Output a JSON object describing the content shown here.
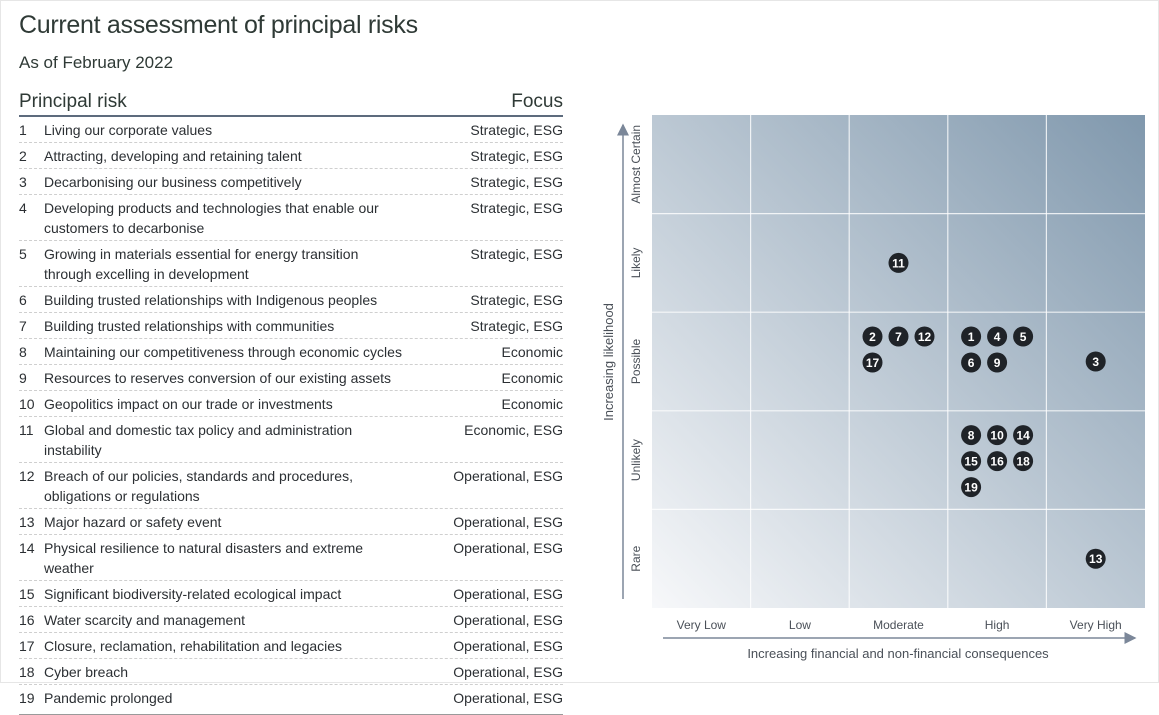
{
  "title": "Current assessment of principal risks",
  "subtitle": "As of February 2022",
  "table": {
    "headers": {
      "risk": "Principal risk",
      "focus": "Focus"
    },
    "rows": [
      {
        "n": "1",
        "risk": "Living our corporate values",
        "focus": "Strategic, ESG"
      },
      {
        "n": "2",
        "risk": "Attracting, developing and retaining talent",
        "focus": "Strategic, ESG"
      },
      {
        "n": "3",
        "risk": "Decarbonising our business competitively",
        "focus": "Strategic, ESG"
      },
      {
        "n": "4",
        "risk": "Developing products and technologies that enable our customers to decarbonise",
        "focus": "Strategic, ESG"
      },
      {
        "n": "5",
        "risk": "Growing in materials essential for energy transition through excelling in development",
        "focus": "Strategic, ESG"
      },
      {
        "n": "6",
        "risk": "Building trusted relationships with Indigenous peoples",
        "focus": "Strategic, ESG"
      },
      {
        "n": "7",
        "risk": "Building trusted relationships with communities",
        "focus": "Strategic, ESG"
      },
      {
        "n": "8",
        "risk": "Maintaining our competitiveness through economic cycles",
        "focus": "Economic"
      },
      {
        "n": "9",
        "risk": "Resources to reserves conversion of our existing assets",
        "focus": "Economic"
      },
      {
        "n": "10",
        "risk": "Geopolitics impact on our trade or investments",
        "focus": "Economic"
      },
      {
        "n": "11",
        "risk": "Global and domestic tax policy and administration instability",
        "focus": "Economic, ESG"
      },
      {
        "n": "12",
        "risk": "Breach of our policies, standards and procedures, obligations or regulations",
        "focus": "Operational, ESG"
      },
      {
        "n": "13",
        "risk": "Major hazard or safety event",
        "focus": "Operational, ESG"
      },
      {
        "n": "14",
        "risk": "Physical resilience to natural disasters and extreme weather",
        "focus": "Operational, ESG"
      },
      {
        "n": "15",
        "risk": "Significant biodiversity-related ecological impact",
        "focus": "Operational, ESG"
      },
      {
        "n": "16",
        "risk": "Water scarcity and management",
        "focus": "Operational, ESG"
      },
      {
        "n": "17",
        "risk": "Closure, reclamation, rehabilitation and legacies",
        "focus": "Operational, ESG"
      },
      {
        "n": "18",
        "risk": "Cyber breach",
        "focus": "Operational, ESG"
      },
      {
        "n": "19",
        "risk": "Pandemic prolonged",
        "focus": "Operational, ESG"
      }
    ]
  },
  "chart_data": {
    "type": "scatter",
    "xlabel": "Increasing financial and non-financial consequences",
    "ylabel": "Increasing likelihood",
    "x_categories": [
      "Very Low",
      "Low",
      "Moderate",
      "High",
      "Very High"
    ],
    "y_categories": [
      "Rare",
      "Unlikely",
      "Possible",
      "Likely",
      "Almost Certain"
    ],
    "colors": {
      "marker": "#1f2328",
      "grid_light": "#f7f8fa",
      "grid_dark": "#8098ad",
      "axis": "#7b8799"
    },
    "points": [
      {
        "label": "11",
        "x": "Moderate",
        "y": "Likely"
      },
      {
        "label": "2",
        "x": "Moderate",
        "y": "Possible"
      },
      {
        "label": "7",
        "x": "Moderate",
        "y": "Possible"
      },
      {
        "label": "12",
        "x": "Moderate",
        "y": "Possible"
      },
      {
        "label": "17",
        "x": "Moderate",
        "y": "Possible"
      },
      {
        "label": "1",
        "x": "High",
        "y": "Possible"
      },
      {
        "label": "4",
        "x": "High",
        "y": "Possible"
      },
      {
        "label": "5",
        "x": "High",
        "y": "Possible"
      },
      {
        "label": "6",
        "x": "High",
        "y": "Possible"
      },
      {
        "label": "9",
        "x": "High",
        "y": "Possible"
      },
      {
        "label": "3",
        "x": "Very High",
        "y": "Possible"
      },
      {
        "label": "8",
        "x": "High",
        "y": "Unlikely"
      },
      {
        "label": "10",
        "x": "High",
        "y": "Unlikely"
      },
      {
        "label": "14",
        "x": "High",
        "y": "Unlikely"
      },
      {
        "label": "15",
        "x": "High",
        "y": "Unlikely"
      },
      {
        "label": "16",
        "x": "High",
        "y": "Unlikely"
      },
      {
        "label": "18",
        "x": "High",
        "y": "Unlikely"
      },
      {
        "label": "19",
        "x": "High",
        "y": "Unlikely"
      },
      {
        "label": "13",
        "x": "Very High",
        "y": "Rare"
      }
    ]
  }
}
